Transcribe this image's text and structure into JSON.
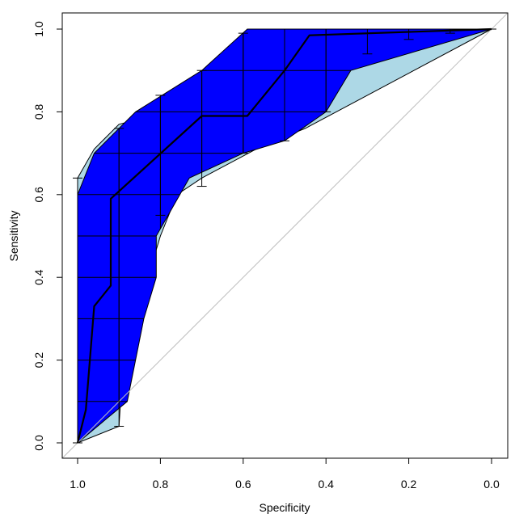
{
  "chart_data": {
    "type": "line",
    "title": "",
    "xlabel": "Specificity",
    "ylabel": "Sensitivity",
    "x_reversed": true,
    "xlim": [
      1.0,
      0.0
    ],
    "ylim": [
      0.0,
      1.0
    ],
    "xticks": [
      "1.0",
      "0.8",
      "0.6",
      "0.4",
      "0.2",
      "0.0"
    ],
    "yticks": [
      "0.0",
      "0.2",
      "0.4",
      "0.6",
      "0.8",
      "1.0"
    ],
    "grid": false,
    "legend": "none",
    "colors": {
      "se_band": "#0000ff",
      "sp_band": "#add8e6",
      "diagonal": "#bebebe",
      "curve": "#000000",
      "hatch": "#000000"
    },
    "roc_curve": [
      [
        1.0,
        0.0
      ],
      [
        0.98,
        0.08
      ],
      [
        0.96,
        0.33
      ],
      [
        0.92,
        0.38
      ],
      [
        0.92,
        0.59
      ],
      [
        0.7,
        0.79
      ],
      [
        0.59,
        0.79
      ],
      [
        0.5,
        0.9
      ],
      [
        0.44,
        0.985
      ],
      [
        0.0,
        1.0
      ]
    ],
    "sensitivity_ci_band": {
      "upper": [
        [
          1.0,
          0.6
        ],
        [
          0.96,
          0.7
        ],
        [
          0.86,
          0.8
        ],
        [
          0.7,
          0.9
        ],
        [
          0.59,
          1.0
        ],
        [
          0.0,
          1.0
        ]
      ],
      "lower": [
        [
          0.0,
          1.0
        ],
        [
          0.34,
          0.9
        ],
        [
          0.4,
          0.8
        ],
        [
          0.5,
          0.73
        ],
        [
          0.6,
          0.7
        ],
        [
          0.73,
          0.64
        ],
        [
          0.81,
          0.5
        ],
        [
          0.81,
          0.4
        ],
        [
          0.84,
          0.3
        ],
        [
          0.88,
          0.1
        ],
        [
          1.0,
          0.0
        ]
      ]
    },
    "specificity_ci_band": {
      "outer": [
        [
          1.0,
          0.0
        ],
        [
          0.9,
          0.04
        ],
        [
          0.89,
          0.2
        ],
        [
          0.86,
          0.3
        ],
        [
          0.83,
          0.4
        ],
        [
          0.8,
          0.5
        ],
        [
          0.78,
          0.55
        ],
        [
          0.76,
          0.6
        ],
        [
          0.7,
          0.64
        ],
        [
          0.55,
          0.72
        ],
        [
          0.45,
          0.76
        ]
      ],
      "inner": [
        [
          1.0,
          0.64
        ],
        [
          0.96,
          0.71
        ],
        [
          0.9,
          0.77
        ]
      ]
    },
    "sensitivity_ci_bars": [
      {
        "specificity": 1.0,
        "low": 0.0,
        "high": 0.64
      },
      {
        "specificity": 0.9,
        "low": 0.04,
        "high": 0.76
      },
      {
        "specificity": 0.8,
        "low": 0.55,
        "high": 0.84
      },
      {
        "specificity": 0.7,
        "low": 0.62,
        "high": 0.9
      },
      {
        "specificity": 0.6,
        "low": 0.7,
        "high": 0.99
      },
      {
        "specificity": 0.5,
        "low": 0.73,
        "high": 1.0
      },
      {
        "specificity": 0.4,
        "low": 0.8,
        "high": 1.0
      },
      {
        "specificity": 0.3,
        "low": 0.94,
        "high": 1.0
      },
      {
        "specificity": 0.2,
        "low": 0.975,
        "high": 1.0
      },
      {
        "specificity": 0.1,
        "low": 0.99,
        "high": 1.0
      },
      {
        "specificity": 0.0,
        "low": 1.0,
        "high": 1.0
      }
    ],
    "hatch_x": [
      0.9,
      0.8,
      0.7,
      0.6,
      0.5,
      0.4
    ],
    "hatch_y": [
      0.1,
      0.2,
      0.3,
      0.4,
      0.5,
      0.6,
      0.7,
      0.8,
      0.9
    ]
  }
}
